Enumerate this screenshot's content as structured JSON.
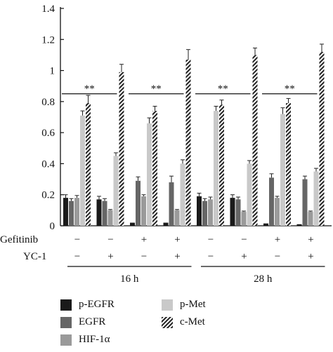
{
  "chart_data": {
    "type": "bar",
    "ylim": [
      0,
      1.4
    ],
    "yticks": [
      "0",
      "0.2",
      "0.4",
      "0.6",
      "0.8",
      "1",
      "1.2",
      "1.4"
    ],
    "ytick_values": [
      0,
      0.2,
      0.4,
      0.6,
      0.8,
      1.0,
      1.2,
      1.4
    ],
    "groups": 8,
    "series": [
      {
        "name": "p-EGFR",
        "color": "#1a1a1a",
        "pattern": "solid",
        "values": [
          0.18,
          0.17,
          0.02,
          0.02,
          0.19,
          0.18,
          0.015,
          0.01
        ],
        "errors": [
          0.02,
          0.02,
          0.0,
          0.0,
          0.02,
          0.02,
          0.0,
          0.0
        ]
      },
      {
        "name": "EGFR",
        "color": "#666666",
        "pattern": "solid",
        "values": [
          0.16,
          0.16,
          0.29,
          0.28,
          0.16,
          0.17,
          0.31,
          0.3
        ],
        "errors": [
          0.015,
          0.015,
          0.025,
          0.04,
          0.015,
          0.015,
          0.025,
          0.02
        ]
      },
      {
        "name": "HIF-1α",
        "color": "#9a9a9a",
        "pattern": "solid",
        "values": [
          0.18,
          0.1,
          0.19,
          0.1,
          0.17,
          0.09,
          0.18,
          0.09
        ],
        "errors": [
          0.015,
          0.005,
          0.01,
          0.005,
          0.015,
          0.005,
          0.01,
          0.005
        ]
      },
      {
        "name": "p-Met",
        "color": "#c9c9c9",
        "pattern": "solid",
        "values": [
          0.71,
          0.45,
          0.66,
          0.4,
          0.74,
          0.4,
          0.72,
          0.35
        ],
        "errors": [
          0.03,
          0.02,
          0.035,
          0.025,
          0.03,
          0.02,
          0.04,
          0.02
        ]
      },
      {
        "name": "c-Met",
        "color": "#333333",
        "pattern": "hatch",
        "values": [
          0.79,
          0.99,
          0.74,
          1.07,
          0.78,
          1.1,
          0.79,
          1.12
        ],
        "errors": [
          0.05,
          0.05,
          0.03,
          0.065,
          0.03,
          0.045,
          0.03,
          0.05
        ]
      }
    ],
    "significance": [
      {
        "from_group": 0,
        "to_group": 1,
        "label": "**"
      },
      {
        "from_group": 2,
        "to_group": 3,
        "label": "**"
      },
      {
        "from_group": 4,
        "to_group": 5,
        "label": "**"
      },
      {
        "from_group": 6,
        "to_group": 7,
        "label": "**"
      }
    ],
    "conditions": {
      "gefitinib": {
        "label": "Gefitinib",
        "values": [
          "−",
          "−",
          "+",
          "+",
          "−",
          "−",
          "+",
          "+"
        ]
      },
      "yc1": {
        "label": "YC-1",
        "values": [
          "−",
          "+",
          "−",
          "+",
          "−",
          "+",
          "−",
          "+"
        ]
      },
      "time_groups": [
        {
          "label": "16 h",
          "from_group": 0,
          "to_group": 3
        },
        {
          "label": "28 h",
          "from_group": 4,
          "to_group": 7
        }
      ]
    },
    "legend_placement": "bottom",
    "grid": false
  }
}
